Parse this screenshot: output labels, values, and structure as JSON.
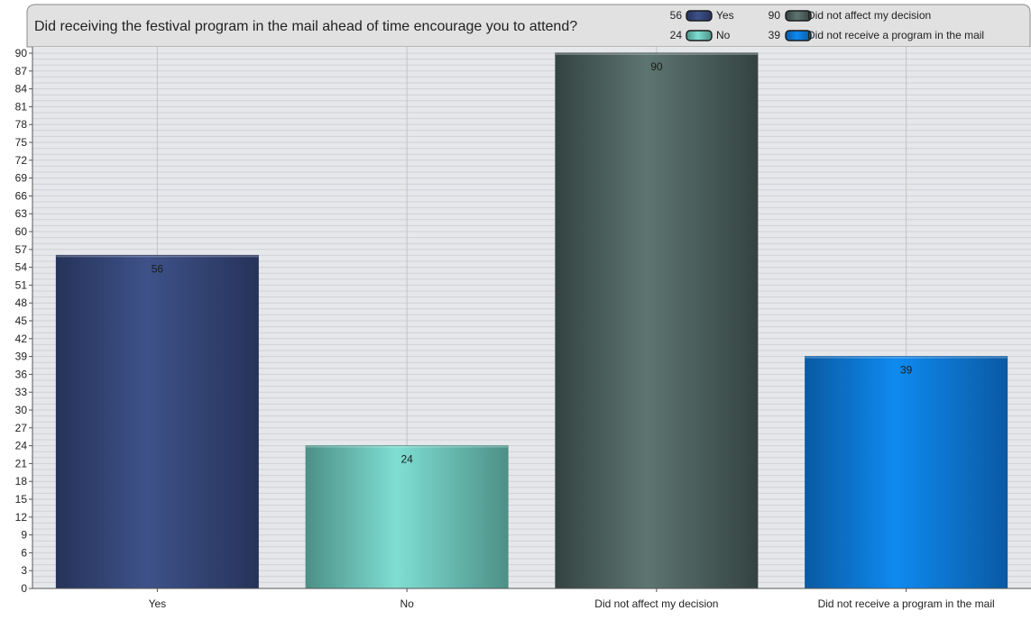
{
  "chart_data": {
    "type": "bar",
    "title": "Did receiving the festival program in the mail ahead of time encourage you to attend?",
    "categories": [
      "Yes",
      "No",
      "Did not affect my decision",
      "Did not receive a program in the mail"
    ],
    "values": [
      56,
      24,
      90,
      39
    ],
    "data_labels": [
      "56",
      "24",
      "90",
      "39"
    ],
    "ylim": [
      0,
      90
    ],
    "ytick_step": 3,
    "xlabel": "",
    "ylabel": "",
    "grid": true,
    "legend_position": "top-right",
    "legend": [
      {
        "count": "56",
        "label": "Yes"
      },
      {
        "count": "24",
        "label": "No"
      },
      {
        "count": "90",
        "label": "Did not affect my decision"
      },
      {
        "count": "39",
        "label": "Did not receive a program in the mail"
      }
    ],
    "colors": [
      {
        "edge": "#26335a",
        "mid": "#3e5289"
      },
      {
        "edge": "#4c9087",
        "mid": "#7fded2"
      },
      {
        "edge": "#344341",
        "mid": "#5d7570"
      },
      {
        "edge": "#0a5aa3",
        "mid": "#0e8af0"
      }
    ],
    "plot_background": "#e6e7ea",
    "minor_grid_color": "#cfd1d6",
    "major_grid_color": "#c2c4c8"
  }
}
